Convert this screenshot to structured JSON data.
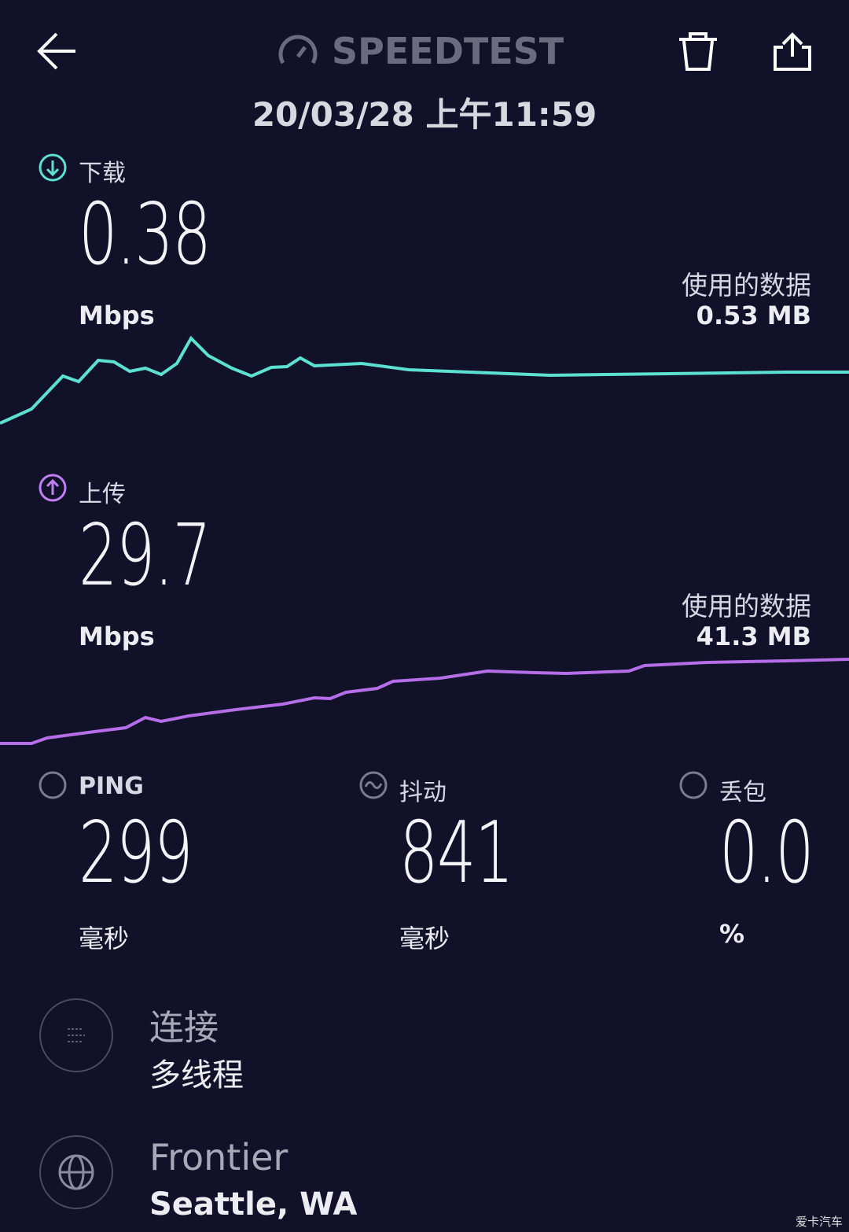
{
  "header": {
    "title": "SPEEDTEST",
    "timestamp": "20/03/28 上午11:59"
  },
  "download": {
    "label": "下载",
    "value": "0.38",
    "unit": "Mbps",
    "data_label": "使用的数据",
    "data_used": "0.53 MB"
  },
  "upload": {
    "label": "上传",
    "value": "29.7",
    "unit": "Mbps",
    "data_label": "使用的数据",
    "data_used": "41.3 MB"
  },
  "metrics": [
    {
      "label": "PING",
      "value": "299",
      "unit": "毫秒"
    },
    {
      "label": "抖动",
      "value": "841",
      "unit": "毫秒"
    },
    {
      "label": "丢包",
      "value": "0.0",
      "unit": "%"
    }
  ],
  "connection": {
    "label": "连接",
    "value": "多线程"
  },
  "server": {
    "provider": "Frontier",
    "location": "Seattle, WA"
  },
  "watermark": "爱卡汽车"
}
